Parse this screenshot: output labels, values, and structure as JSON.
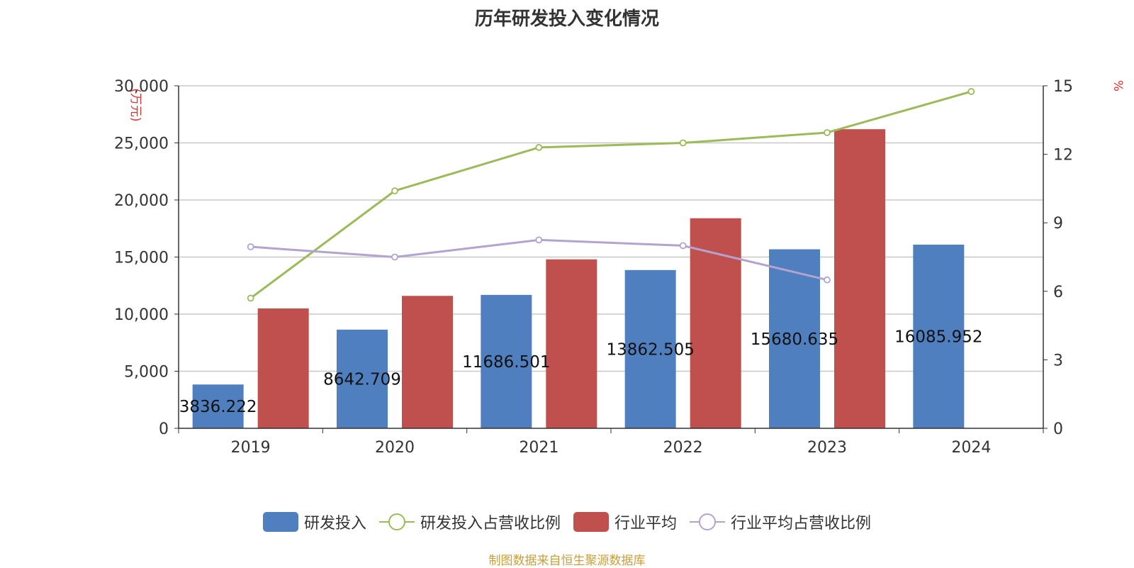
{
  "title": "历年研发投入变化情况",
  "source_note": "制图数据来自恒生聚源数据库",
  "colors": {
    "rd_bar": "#4f7fbf",
    "industry_bar": "#c0504d",
    "rd_ratio_line": "#9bbb59",
    "industry_ratio_line": "#b3a3cf",
    "axis_unit": "#e03030",
    "source": "#c8a03a"
  },
  "legend": {
    "items": [
      {
        "label": "研发投入",
        "kind": "bar",
        "color": "#4f7fbf"
      },
      {
        "label": "研发投入占营收比例",
        "kind": "line",
        "color": "#9bbb59"
      },
      {
        "label": "行业平均",
        "kind": "bar",
        "color": "#c0504d"
      },
      {
        "label": "行业平均占营收比例",
        "kind": "line",
        "color": "#b3a3cf"
      }
    ]
  },
  "chart_data": {
    "type": "bar",
    "title": "历年研发投入变化情况",
    "categories": [
      "2019",
      "2020",
      "2021",
      "2022",
      "2023",
      "2024"
    ],
    "left_axis": {
      "unit": "(万元)",
      "ylim": [
        0,
        30000
      ],
      "ticks": [
        "0",
        "5,000",
        "10,000",
        "15,000",
        "20,000",
        "25,000",
        "30,000"
      ]
    },
    "right_axis": {
      "unit": "%",
      "ylim": [
        0,
        15
      ],
      "ticks": [
        "0",
        "3",
        "6",
        "9",
        "12",
        "15"
      ]
    },
    "grid": true,
    "legend_position": "bottom",
    "series": [
      {
        "name": "研发投入",
        "type": "bar",
        "axis": "left",
        "values": [
          3836.222,
          8642.709,
          11686.501,
          13862.505,
          15680.635,
          16085.952
        ],
        "labels": [
          "3836.222",
          "8642.709",
          "11686.501",
          "13862.505",
          "15680.635",
          "16085.952"
        ]
      },
      {
        "name": "行业平均",
        "type": "bar",
        "axis": "left",
        "values": [
          10500,
          11600,
          14800,
          18400,
          26200,
          null
        ]
      },
      {
        "name": "研发投入占营收比例",
        "type": "line",
        "axis": "right",
        "values": [
          5.7,
          10.4,
          12.3,
          12.5,
          12.95,
          14.75
        ]
      },
      {
        "name": "行业平均占营收比例",
        "type": "line",
        "axis": "right",
        "values": [
          7.95,
          7.5,
          8.25,
          8.0,
          6.5,
          null
        ]
      }
    ]
  }
}
